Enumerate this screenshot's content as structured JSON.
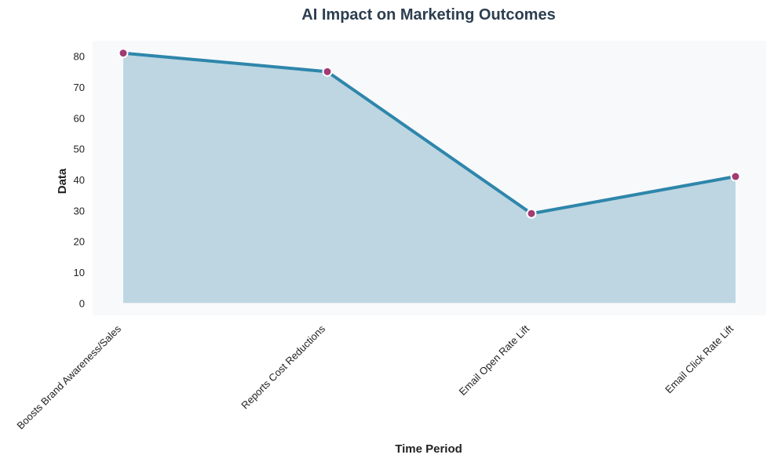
{
  "chart_data": {
    "type": "area",
    "title": "AI Impact on Marketing Outcomes",
    "xlabel": "Time Period",
    "ylabel": "Data",
    "categories": [
      "Boosts Brand Awareness/Sales",
      "Reports Cost Reductions",
      "Email Open Rate Lift",
      "Email Click Rate Lift"
    ],
    "series": [
      {
        "values": [
          81,
          75,
          29,
          41
        ]
      }
    ],
    "ylim": [
      -4,
      85
    ],
    "yticks": [
      "0",
      "10",
      "20",
      "30",
      "40",
      "50",
      "60",
      "70",
      "80"
    ],
    "grid": false,
    "legend": "none",
    "colors": {
      "plot_background": "#f8f9fb",
      "line": "#2e86ab",
      "fill": "#bdd6e2",
      "marker_fill": "#a23b72",
      "marker_edge": "#ffffff",
      "title": "#2c3e50",
      "text": "#222222"
    }
  }
}
